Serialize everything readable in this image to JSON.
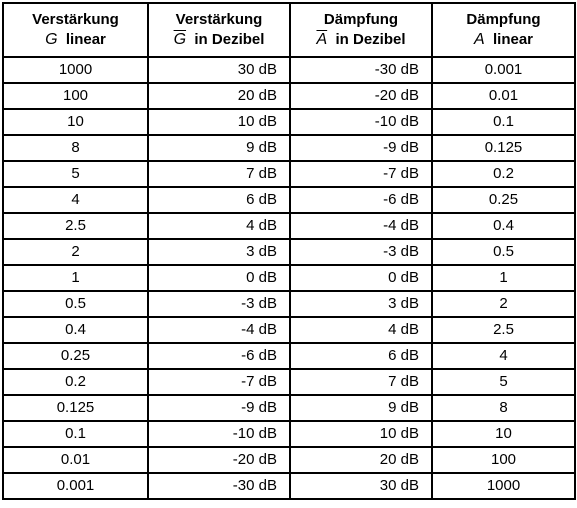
{
  "headers": [
    {
      "line1": "Verstärkung",
      "symbol": "G",
      "overline": false,
      "line2": "linear"
    },
    {
      "line1": "Verstärkung",
      "symbol": "G",
      "overline": true,
      "line2": "in Dezibel"
    },
    {
      "line1": "Dämpfung",
      "symbol": "A",
      "overline": true,
      "line2": "in Dezibel"
    },
    {
      "line1": "Dämpfung",
      "symbol": "A",
      "overline": false,
      "line2": "linear"
    }
  ],
  "rows": [
    [
      "1000",
      "30 dB",
      "-30 dB",
      "0.001"
    ],
    [
      "100",
      "20 dB",
      "-20 dB",
      "0.01"
    ],
    [
      "10",
      "10 dB",
      "-10 dB",
      "0.1"
    ],
    [
      "8",
      "9 dB",
      "-9 dB",
      "0.125"
    ],
    [
      "5",
      "7 dB",
      "-7 dB",
      "0.2"
    ],
    [
      "4",
      "6 dB",
      "-6 dB",
      "0.25"
    ],
    [
      "2.5",
      "4 dB",
      "-4 dB",
      "0.4"
    ],
    [
      "2",
      "3 dB",
      "-3 dB",
      "0.5"
    ],
    [
      "1",
      "0 dB",
      "0 dB",
      "1"
    ],
    [
      "0.5",
      "-3 dB",
      "3 dB",
      "2"
    ],
    [
      "0.4",
      "-4 dB",
      "4 dB",
      "2.5"
    ],
    [
      "0.25",
      "-6 dB",
      "6 dB",
      "4"
    ],
    [
      "0.2",
      "-7 dB",
      "7 dB",
      "5"
    ],
    [
      "0.125",
      "-9 dB",
      "9 dB",
      "8"
    ],
    [
      "0.1",
      "-10 dB",
      "10 dB",
      "10"
    ],
    [
      "0.01",
      "-20 dB",
      "20 dB",
      "100"
    ],
    [
      "0.001",
      "-30 dB",
      "30 dB",
      "1000"
    ]
  ]
}
